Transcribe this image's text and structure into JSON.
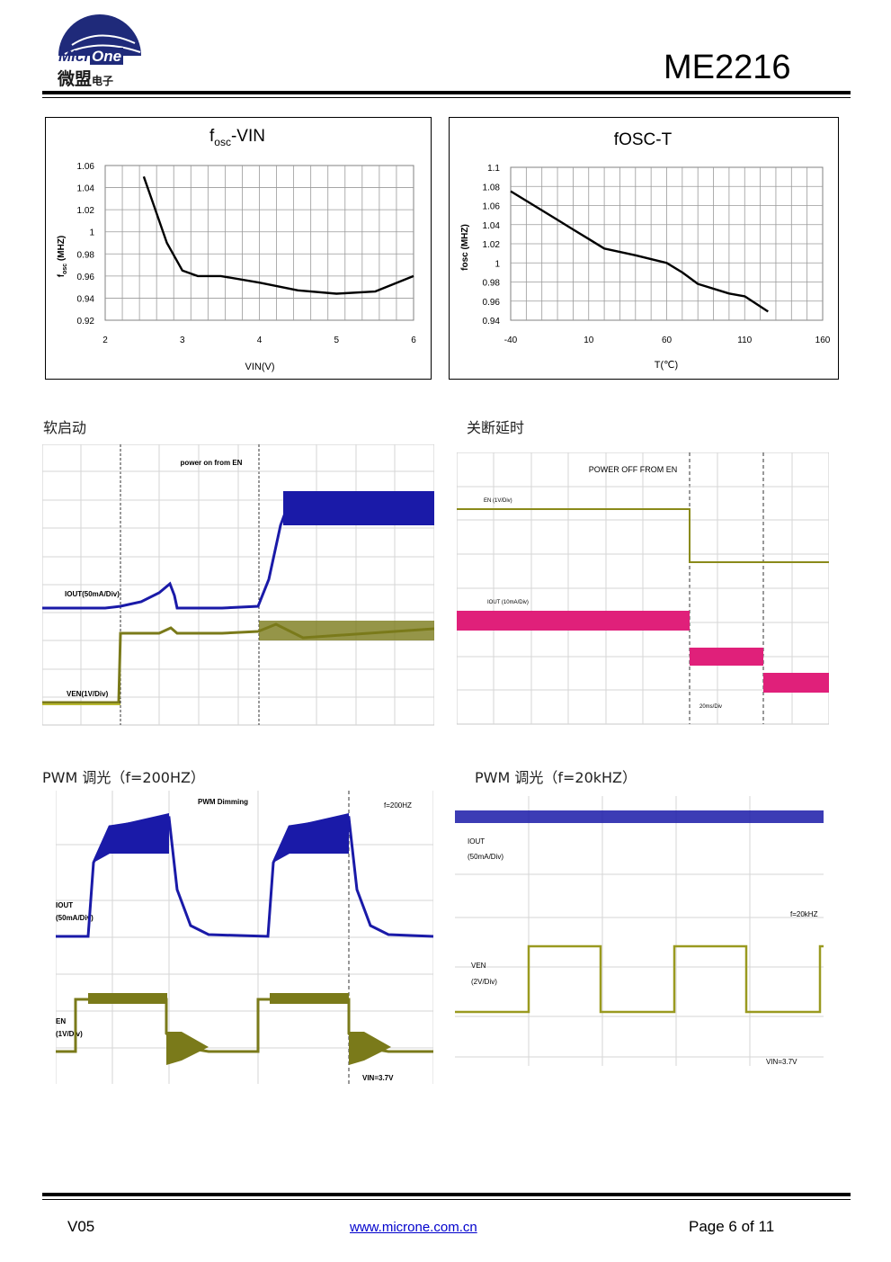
{
  "header": {
    "logo_latin_1": "Micr",
    "logo_latin_2": "One",
    "logo_cjk": "微盟",
    "logo_cjk_small": "电子",
    "part_number": "ME2216"
  },
  "colors": {
    "logo_blue": "#1f2a7a",
    "scope_blue": "#1a1aa8",
    "scope_olive": "#7a7a1a",
    "scope_magenta": "#e0207a",
    "scope_yellow": "#b8b830"
  },
  "charts": {
    "fosc_vin": {
      "title_f": "f",
      "title_sub": "osc",
      "title_rest": "-VIN",
      "xlabel": "VIN(V)",
      "ylabel_f": "f",
      "ylabel_sub": "osc",
      "ylabel_rest": " (MHZ)"
    },
    "fosc_t": {
      "title": "fOSC-T",
      "xlabel": "T(℃)",
      "ylabel": "fosc (MHZ)"
    }
  },
  "chart_data": [
    {
      "type": "line",
      "x": [
        2.5,
        2.6,
        2.8,
        3.0,
        3.2,
        3.5,
        4.0,
        4.5,
        5.0,
        5.5,
        6.0
      ],
      "series": [
        {
          "values": [
            1.05,
            1.03,
            0.99,
            0.965,
            0.96,
            0.96,
            0.954,
            0.947,
            0.944,
            0.946,
            0.96
          ]
        }
      ],
      "xlim": [
        2,
        6
      ],
      "ylim": [
        0.92,
        1.06
      ],
      "xticks": [
        "2",
        "3",
        "4",
        "5",
        "6"
      ],
      "yticks": [
        "0.92",
        "0.94",
        "0.96",
        "0.98",
        "1",
        "1.02",
        "1.04",
        "1.06"
      ],
      "grid": true
    },
    {
      "type": "line",
      "x": [
        -40,
        -25,
        -10,
        0,
        10,
        20,
        40,
        60,
        70,
        80,
        100,
        110,
        125
      ],
      "series": [
        {
          "values": [
            1.075,
            1.06,
            1.045,
            1.035,
            1.025,
            1.015,
            1.008,
            1.0,
            0.99,
            0.978,
            0.968,
            0.965,
            0.949
          ]
        }
      ],
      "xlim": [
        -40,
        160
      ],
      "ylim": [
        0.94,
        1.1
      ],
      "xticks": [
        "-40",
        "10",
        "60",
        "110",
        "160"
      ],
      "yticks": [
        "0.94",
        "0.96",
        "0.98",
        "1",
        "1.02",
        "1.04",
        "1.06",
        "1.08",
        "1.1"
      ],
      "grid": true
    }
  ],
  "scopes": {
    "soft_start": {
      "label": "软启动",
      "title": "power on from EN",
      "ch1": "IOUT(50mA/Div)",
      "ch2": "VEN(1V/Div)"
    },
    "shutdown": {
      "label": "关断延时",
      "title": "POWER OFF FROM EN",
      "ch1": "EN (1V/Div)",
      "ch2": "IOUT (10mA/Div)",
      "time": "20ms/Div"
    },
    "pwm200": {
      "label": "PWM 调光（f=200HZ）",
      "title": "PWM Dimming",
      "freq": "f=200HZ",
      "ch1a": "IOUT",
      "ch1b": "(50mA/Div)",
      "ch2a": "EN",
      "ch2b": "(1V/Div)",
      "vin": "VIN=3.7V"
    },
    "pwm20k": {
      "label": "PWM 调光（f=20kHZ）",
      "freq": "f=20kHZ",
      "ch1a": "IOUT",
      "ch1b": "(50mA/Div)",
      "ch2a": "VEN",
      "ch2b": "(2V/Div)",
      "vin": "VIN=3.7V"
    }
  },
  "footer": {
    "version": "V05",
    "url": "www.microne.com.cn",
    "page": "Page 6 of 11"
  }
}
